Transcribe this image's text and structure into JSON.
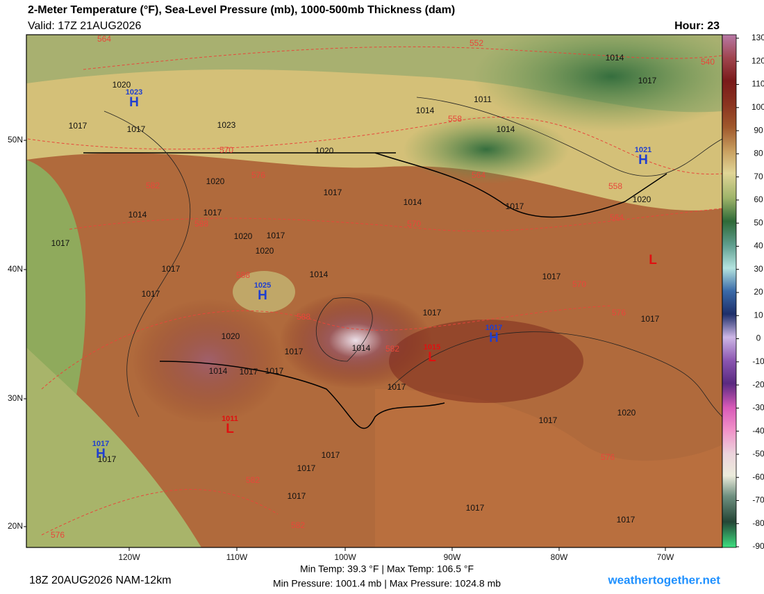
{
  "header": {
    "title": "2-Meter Temperature (°F), Sea-Level Pressure (mb), 1000-500mb Thickness (dam)",
    "valid": "Valid: 17Z 21AUG2026",
    "hour": "Hour: 23"
  },
  "map": {
    "lat_labels": [
      "50N",
      "40N",
      "30N",
      "20N"
    ],
    "lon_labels": [
      "120W",
      "110W",
      "100W",
      "90W",
      "80W",
      "70W"
    ],
    "centers": [
      {
        "letter": "H",
        "value": "1023",
        "color": "#1f3fd0"
      },
      {
        "letter": "H",
        "value": "1025",
        "color": "#1f3fd0"
      },
      {
        "letter": "H",
        "value": "1017",
        "color": "#1f3fd0"
      },
      {
        "letter": "H",
        "value": "1021",
        "color": "#1f3fd0"
      },
      {
        "letter": "H",
        "value": "1017",
        "color": "#1f3fd0"
      },
      {
        "letter": "L",
        "value": "1015",
        "color": "#e01010"
      },
      {
        "letter": "L",
        "color": "#e01010"
      },
      {
        "letter": "L",
        "value": "1011",
        "color": "#e01010"
      }
    ],
    "isobar_labels": [
      "1014",
      "1017",
      "1011",
      "1014",
      "1014",
      "1020",
      "1017",
      "1017",
      "1023",
      "1020",
      "1020",
      "1017",
      "1014",
      "1017",
      "1020",
      "1014",
      "1017",
      "1020",
      "1017",
      "1020",
      "1017",
      "1017",
      "1014",
      "1017",
      "1017",
      "1017",
      "1017",
      "1020",
      "1014",
      "1017",
      "1014",
      "1017",
      "1017",
      "1017",
      "1017",
      "1020",
      "1017",
      "1017",
      "1017",
      "1017",
      "1017",
      "1017"
    ],
    "thickness_labels": [
      "564",
      "552",
      "540",
      "558",
      "570",
      "576",
      "564",
      "558",
      "582",
      "570",
      "564",
      "588",
      "588",
      "570",
      "576",
      "588",
      "582",
      "582",
      "576",
      "576",
      "582"
    ]
  },
  "colorbar": {
    "ticks": [
      130,
      120,
      110,
      100,
      90,
      80,
      70,
      60,
      50,
      40,
      30,
      20,
      10,
      0,
      -10,
      -20,
      -30,
      -40,
      -50,
      -60,
      -70,
      -80,
      -90
    ]
  },
  "footer": {
    "temps": "Min Temp: 39.3 °F | Max Temp: 106.5 °F",
    "pressures": "Min Pressure: 1001.4 mb | Max Pressure: 1024.8 mb",
    "run": "18Z 20AUG2026 NAM-12km",
    "site": "weathertogether.net"
  }
}
